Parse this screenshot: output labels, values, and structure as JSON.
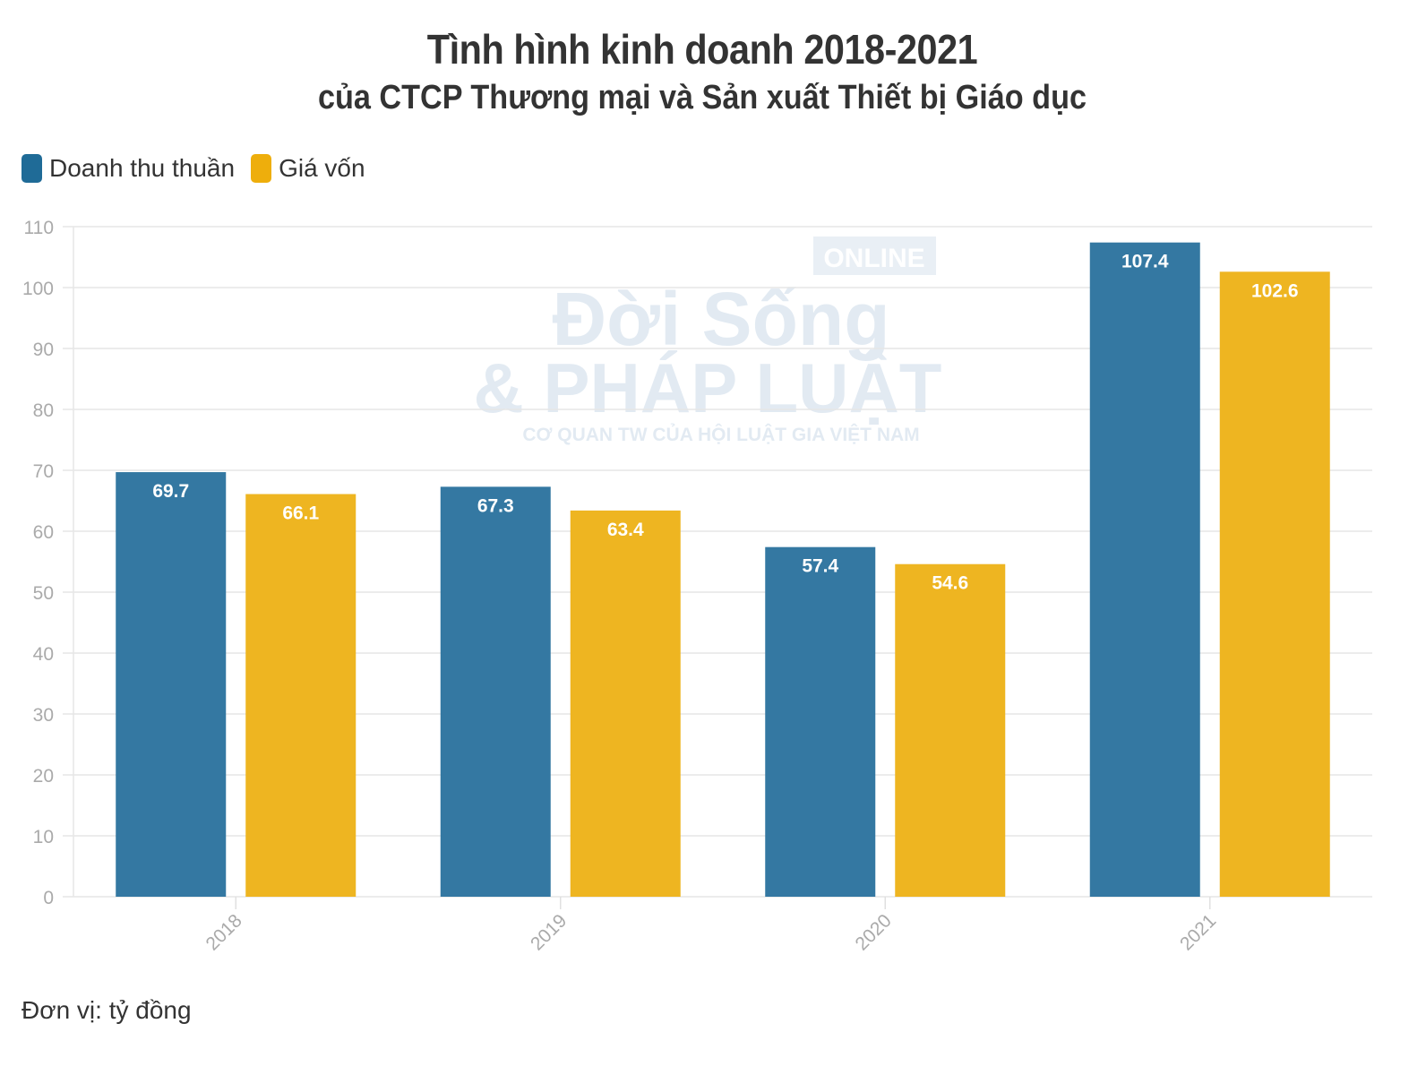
{
  "title": "Tình hình kinh doanh 2018-2021",
  "subtitle": "của CTCP Thương mại và Sản xuất Thiết bị Giáo dục",
  "footnote": "Đơn vị: tỷ đồng",
  "watermark": {
    "line1": "ONLINE",
    "line2": "Đời Sống",
    "line3": "& PHÁP LUẬT",
    "line4": "CƠ QUAN TW CỦA HỘI LUẬT GIA VIỆT NAM"
  },
  "chart_data": {
    "type": "bar",
    "categories": [
      "2018",
      "2019",
      "2020",
      "2021"
    ],
    "series": [
      {
        "name": "Doanh thu thuần",
        "values": [
          69.7,
          67.3,
          57.4,
          107.4
        ],
        "color": "#3478a2",
        "legend_color": "#1f6b97"
      },
      {
        "name": "Giá vốn",
        "values": [
          66.1,
          63.4,
          54.6,
          102.6
        ],
        "color": "#eeb521",
        "legend_color": "#eeae0c"
      }
    ],
    "ylim": [
      0,
      110
    ],
    "yticks": [
      0,
      10,
      20,
      30,
      40,
      50,
      60,
      70,
      80,
      90,
      100,
      110
    ],
    "grid": true,
    "legend": "top-left",
    "data_labels": true,
    "xlabel": "",
    "ylabel": ""
  }
}
